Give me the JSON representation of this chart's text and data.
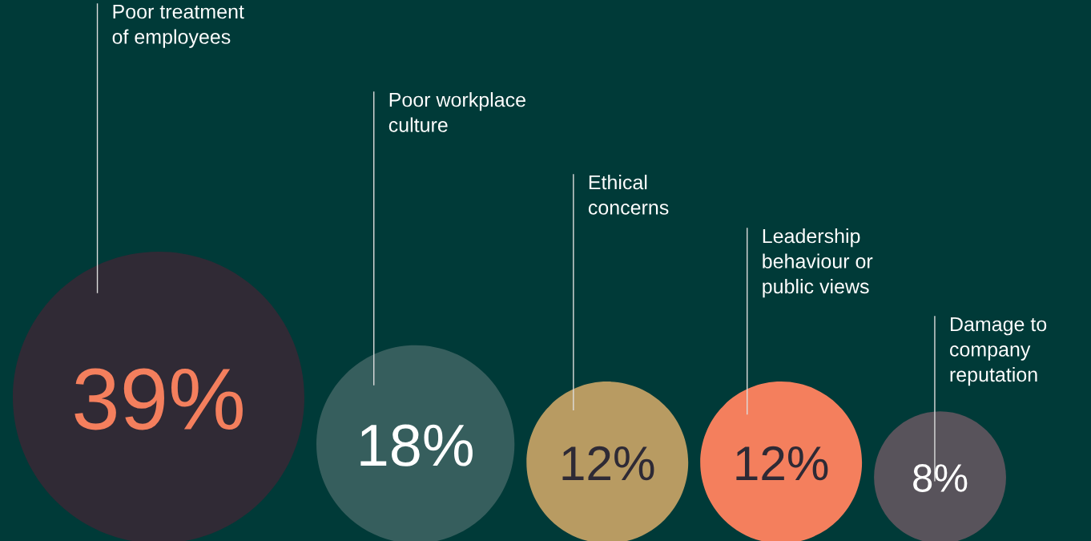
{
  "chart_data": {
    "type": "other",
    "categories": [
      "Poor treatment\nof employees",
      "Poor workplace\nculture",
      "Ethical\nconcerns",
      "Leadership\nbehaviour or\npublic views",
      "Damage to\ncompany\nreputation"
    ],
    "values": [
      39,
      18,
      12,
      12,
      8
    ],
    "value_labels": [
      "39%",
      "18%",
      "12%",
      "12%",
      "8%"
    ],
    "colors": [
      "#302a35",
      "#365e5d",
      "#b89b62",
      "#f47f5d",
      "#58535b"
    ]
  }
}
